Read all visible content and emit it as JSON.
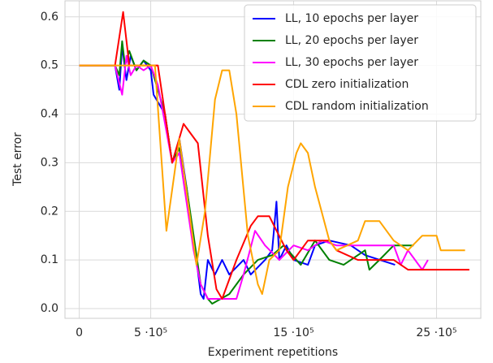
{
  "chart_data": {
    "type": "line",
    "xlabel": "Experiment repetitions",
    "ylabel": "Test error",
    "xlim": [
      -100000,
      2810000
    ],
    "ylim": [
      -0.02,
      0.633
    ],
    "xticks": [
      0,
      {
        "value": 500000,
        "label": "5 ·10⁵"
      },
      {
        "value": 1500000,
        "label": "15 ·10⁵"
      },
      {
        "value": 2500000,
        "label": "25 ·10⁵"
      }
    ],
    "yticks": [
      {
        "value": 0,
        "label": "0.0"
      },
      0.1,
      0.2,
      0.3,
      0.4,
      0.5,
      0.6
    ],
    "grid": true,
    "legend": "upper right",
    "series": [
      {
        "name": "LL, 10 epochs per layer",
        "color": "#0000ff",
        "x": [
          0,
          250000,
          280000,
          300000,
          330000,
          360000,
          400000,
          450000,
          500000,
          520000,
          600000,
          650000,
          700000,
          750000,
          820000,
          850000,
          870000,
          900000,
          950000,
          1000000,
          1050000,
          1150000,
          1200000,
          1300000,
          1350000,
          1380000,
          1400000,
          1450000,
          1500000,
          1600000,
          1650000,
          1750000,
          1900000,
          2000000,
          2210000
        ],
        "values": [
          0.5,
          0.5,
          0.45,
          0.54,
          0.47,
          0.52,
          0.49,
          0.51,
          0.49,
          0.44,
          0.4,
          0.3,
          0.35,
          0.25,
          0.1,
          0.03,
          0.02,
          0.1,
          0.07,
          0.1,
          0.07,
          0.1,
          0.07,
          0.1,
          0.12,
          0.22,
          0.1,
          0.13,
          0.1,
          0.09,
          0.13,
          0.14,
          0.13,
          0.11,
          0.09
        ]
      },
      {
        "name": "LL, 20 epochs per layer",
        "color": "#008000",
        "x": [
          0,
          250000,
          280000,
          300000,
          320000,
          350000,
          400000,
          450000,
          500000,
          550000,
          600000,
          650000,
          700000,
          750000,
          800000,
          850000,
          900000,
          930000,
          1050000,
          1150000,
          1250000,
          1350000,
          1430000,
          1550000,
          1650000,
          1750000,
          1850000,
          2000000,
          2030000,
          2100000,
          2200000,
          2340000
        ],
        "values": [
          0.5,
          0.5,
          0.48,
          0.55,
          0.5,
          0.53,
          0.49,
          0.51,
          0.5,
          0.45,
          0.4,
          0.3,
          0.33,
          0.25,
          0.15,
          0.05,
          0.02,
          0.01,
          0.03,
          0.07,
          0.1,
          0.11,
          0.13,
          0.09,
          0.14,
          0.1,
          0.09,
          0.12,
          0.08,
          0.1,
          0.13,
          0.13
        ]
      },
      {
        "name": "LL, 30 epochs per layer",
        "color": "#ff00ff",
        "x": [
          0,
          250000,
          300000,
          330000,
          360000,
          400000,
          450000,
          500000,
          550000,
          600000,
          650000,
          700000,
          750000,
          800000,
          850000,
          900000,
          1100000,
          1150000,
          1230000,
          1300000,
          1400000,
          1500000,
          1600000,
          1700000,
          1800000,
          2200000,
          2250000,
          2300000,
          2400000,
          2440000
        ],
        "values": [
          0.5,
          0.5,
          0.44,
          0.52,
          0.48,
          0.5,
          0.49,
          0.5,
          0.46,
          0.38,
          0.3,
          0.32,
          0.22,
          0.12,
          0.05,
          0.02,
          0.02,
          0.07,
          0.16,
          0.13,
          0.1,
          0.13,
          0.12,
          0.14,
          0.13,
          0.13,
          0.09,
          0.12,
          0.08,
          0.1
        ]
      },
      {
        "name": "CDL zero initialization",
        "color": "#ff0000",
        "x": [
          0,
          250000,
          307000,
          350000,
          550000,
          650000,
          730000,
          830000,
          900000,
          960000,
          1000000,
          1100000,
          1200000,
          1250000,
          1330000,
          1450000,
          1500000,
          1600000,
          1750000,
          1800000,
          1950000,
          2200000,
          2300000,
          2730000
        ],
        "values": [
          0.5,
          0.5,
          0.61,
          0.5,
          0.5,
          0.3,
          0.38,
          0.34,
          0.15,
          0.04,
          0.02,
          0.1,
          0.17,
          0.19,
          0.19,
          0.12,
          0.1,
          0.14,
          0.14,
          0.12,
          0.1,
          0.1,
          0.08,
          0.08
        ]
      },
      {
        "name": "CDL random initialization",
        "color": "#ffa500",
        "x": [
          0,
          500000,
          530000,
          610000,
          700000,
          820000,
          880000,
          950000,
          1000000,
          1050000,
          1100000,
          1180000,
          1250000,
          1280000,
          1330000,
          1400000,
          1460000,
          1520000,
          1550000,
          1600000,
          1650000,
          1750000,
          1800000,
          1950000,
          2000000,
          2100000,
          2200000,
          2300000,
          2400000,
          2500000,
          2530000,
          2700000
        ],
        "values": [
          0.5,
          0.5,
          0.5,
          0.16,
          0.35,
          0.09,
          0.2,
          0.43,
          0.49,
          0.49,
          0.4,
          0.15,
          0.05,
          0.03,
          0.1,
          0.12,
          0.25,
          0.32,
          0.34,
          0.32,
          0.25,
          0.14,
          0.12,
          0.14,
          0.18,
          0.18,
          0.14,
          0.12,
          0.15,
          0.15,
          0.12,
          0.12
        ]
      }
    ]
  }
}
